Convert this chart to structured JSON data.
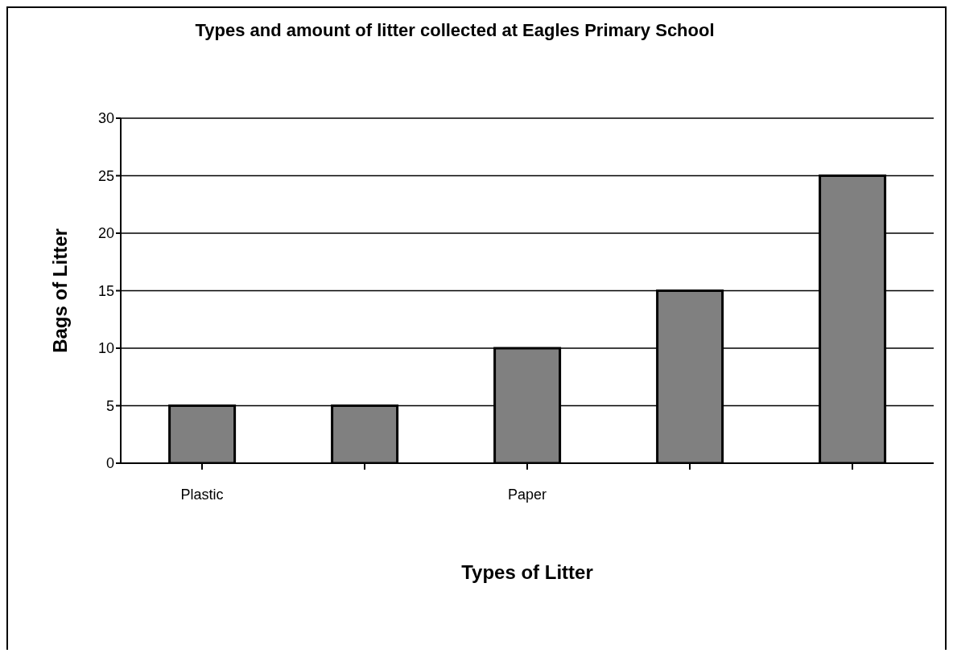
{
  "chart_data": {
    "type": "bar",
    "title": "Types and amount of litter collected at Eagles Primary School",
    "xlabel": "Types of Litter",
    "ylabel": "Bags of Litter",
    "categories": [
      "Plastic",
      null,
      "Paper",
      null,
      null
    ],
    "values": [
      5,
      5,
      10,
      15,
      25
    ],
    "color": "#808080",
    "ylim": [
      0,
      30
    ],
    "yticks": [
      0,
      5,
      10,
      15,
      20,
      25,
      30
    ],
    "grid": "y"
  }
}
